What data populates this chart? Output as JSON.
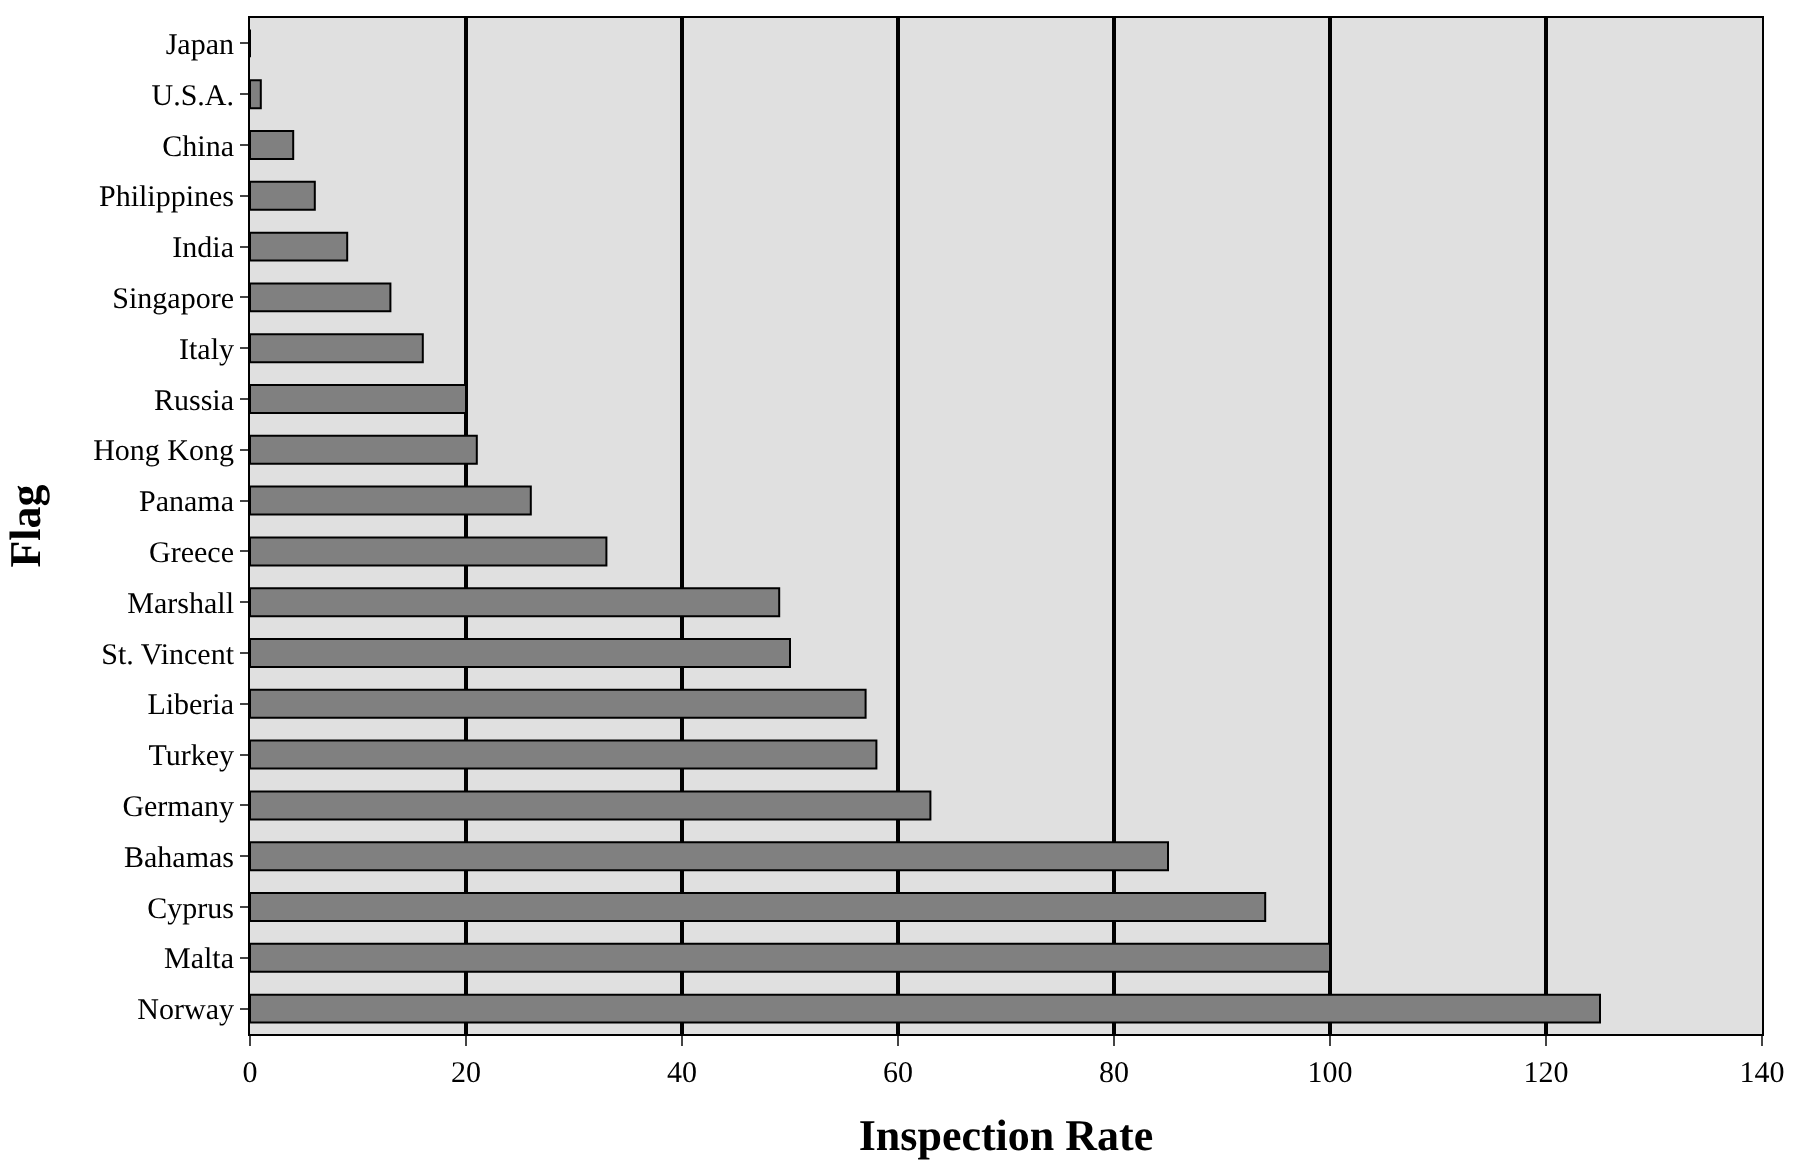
{
  "chart_data": {
    "type": "bar",
    "orientation": "horizontal",
    "xlabel": "Inspection Rate",
    "ylabel": "Flag",
    "categories": [
      "Japan",
      "U.S.A.",
      "China",
      "Philippines",
      "India",
      "Singapore",
      "Italy",
      "Russia",
      "Hong Kong",
      "Panama",
      "Greece",
      "Marshall",
      "St. Vincent",
      "Liberia",
      "Turkey",
      "Germany",
      "Bahamas",
      "Cyprus",
      "Malta",
      "Norway"
    ],
    "values": [
      0,
      1,
      4,
      6,
      9,
      13,
      16,
      20,
      21,
      26,
      33,
      49,
      50,
      57,
      58,
      63,
      85,
      94,
      100,
      125
    ],
    "color": "#808080",
    "xlim": [
      0,
      140
    ],
    "xticks": [
      0,
      20,
      40,
      60,
      80,
      100,
      120,
      140
    ],
    "grid": "x"
  }
}
